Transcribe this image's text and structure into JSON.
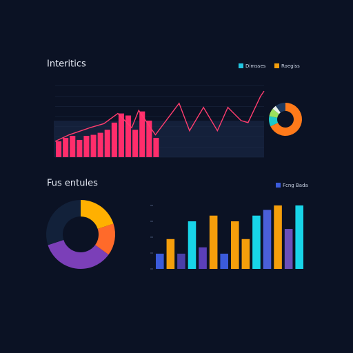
{
  "chart_data": [
    {
      "type": "combo",
      "title": "Interitics",
      "xlim": [
        0,
        30
      ],
      "ylim": [
        0,
        80
      ],
      "yticks": [
        0,
        10,
        20,
        30,
        40,
        50,
        60,
        70
      ],
      "legend": [
        {
          "name": "Dimsses",
          "color": "#22c5e0"
        },
        {
          "name": "Roegiss",
          "color": "#f59e0b"
        }
      ],
      "bars": {
        "color": "#ff2d6b",
        "values": [
          15.6,
          19,
          21,
          17,
          21,
          22,
          24,
          27,
          34,
          43,
          41,
          27,
          45,
          36,
          19
        ]
      },
      "line": {
        "color": "#ff3d6e",
        "x": [
          0,
          2,
          5,
          7,
          9,
          11,
          12,
          14.4,
          17.8,
          19.3,
          21.3,
          23.3,
          24.8,
          26.7,
          27.7,
          29.5,
          30
        ],
        "values": [
          15.6,
          22,
          29,
          33,
          43,
          29,
          46,
          22,
          53,
          26,
          49,
          26,
          49,
          36,
          34,
          60,
          65
        ]
      }
    },
    {
      "type": "pie",
      "values": [
        68,
        10,
        8,
        4,
        10
      ],
      "colors": [
        "#ff7a1a",
        "#1ec8c8",
        "#9be15d",
        "#e8f0e8",
        "#1e3a5f"
      ]
    },
    {
      "type": "pie",
      "title": "Fus entules",
      "values": [
        20,
        15,
        35,
        30
      ],
      "colors": [
        "#ffb000",
        "#ff6a2a",
        "#7b3fb8",
        "#12213a"
      ]
    },
    {
      "type": "bar",
      "ylim": [
        0,
        100
      ],
      "yticks": [
        0,
        25,
        50,
        75,
        100
      ],
      "legend": [
        {
          "name": "Fcng Bada",
          "color": "#3b5bdb"
        }
      ],
      "values": [
        24,
        47,
        24,
        75,
        34,
        84,
        24,
        75,
        47,
        84,
        93,
        100,
        63,
        100
      ],
      "colors": [
        "#3b5bdb",
        "#f59e0b",
        "#4a3fa8",
        "#18d4e8",
        "#5b3fb8",
        "#f59e0b",
        "#3b5bdb",
        "#f59e0b",
        "#f59e0b",
        "#18d4e8",
        "#4a5fd8",
        "#f59e0b",
        "#6a4fb8",
        "#18d4e8"
      ]
    }
  ]
}
